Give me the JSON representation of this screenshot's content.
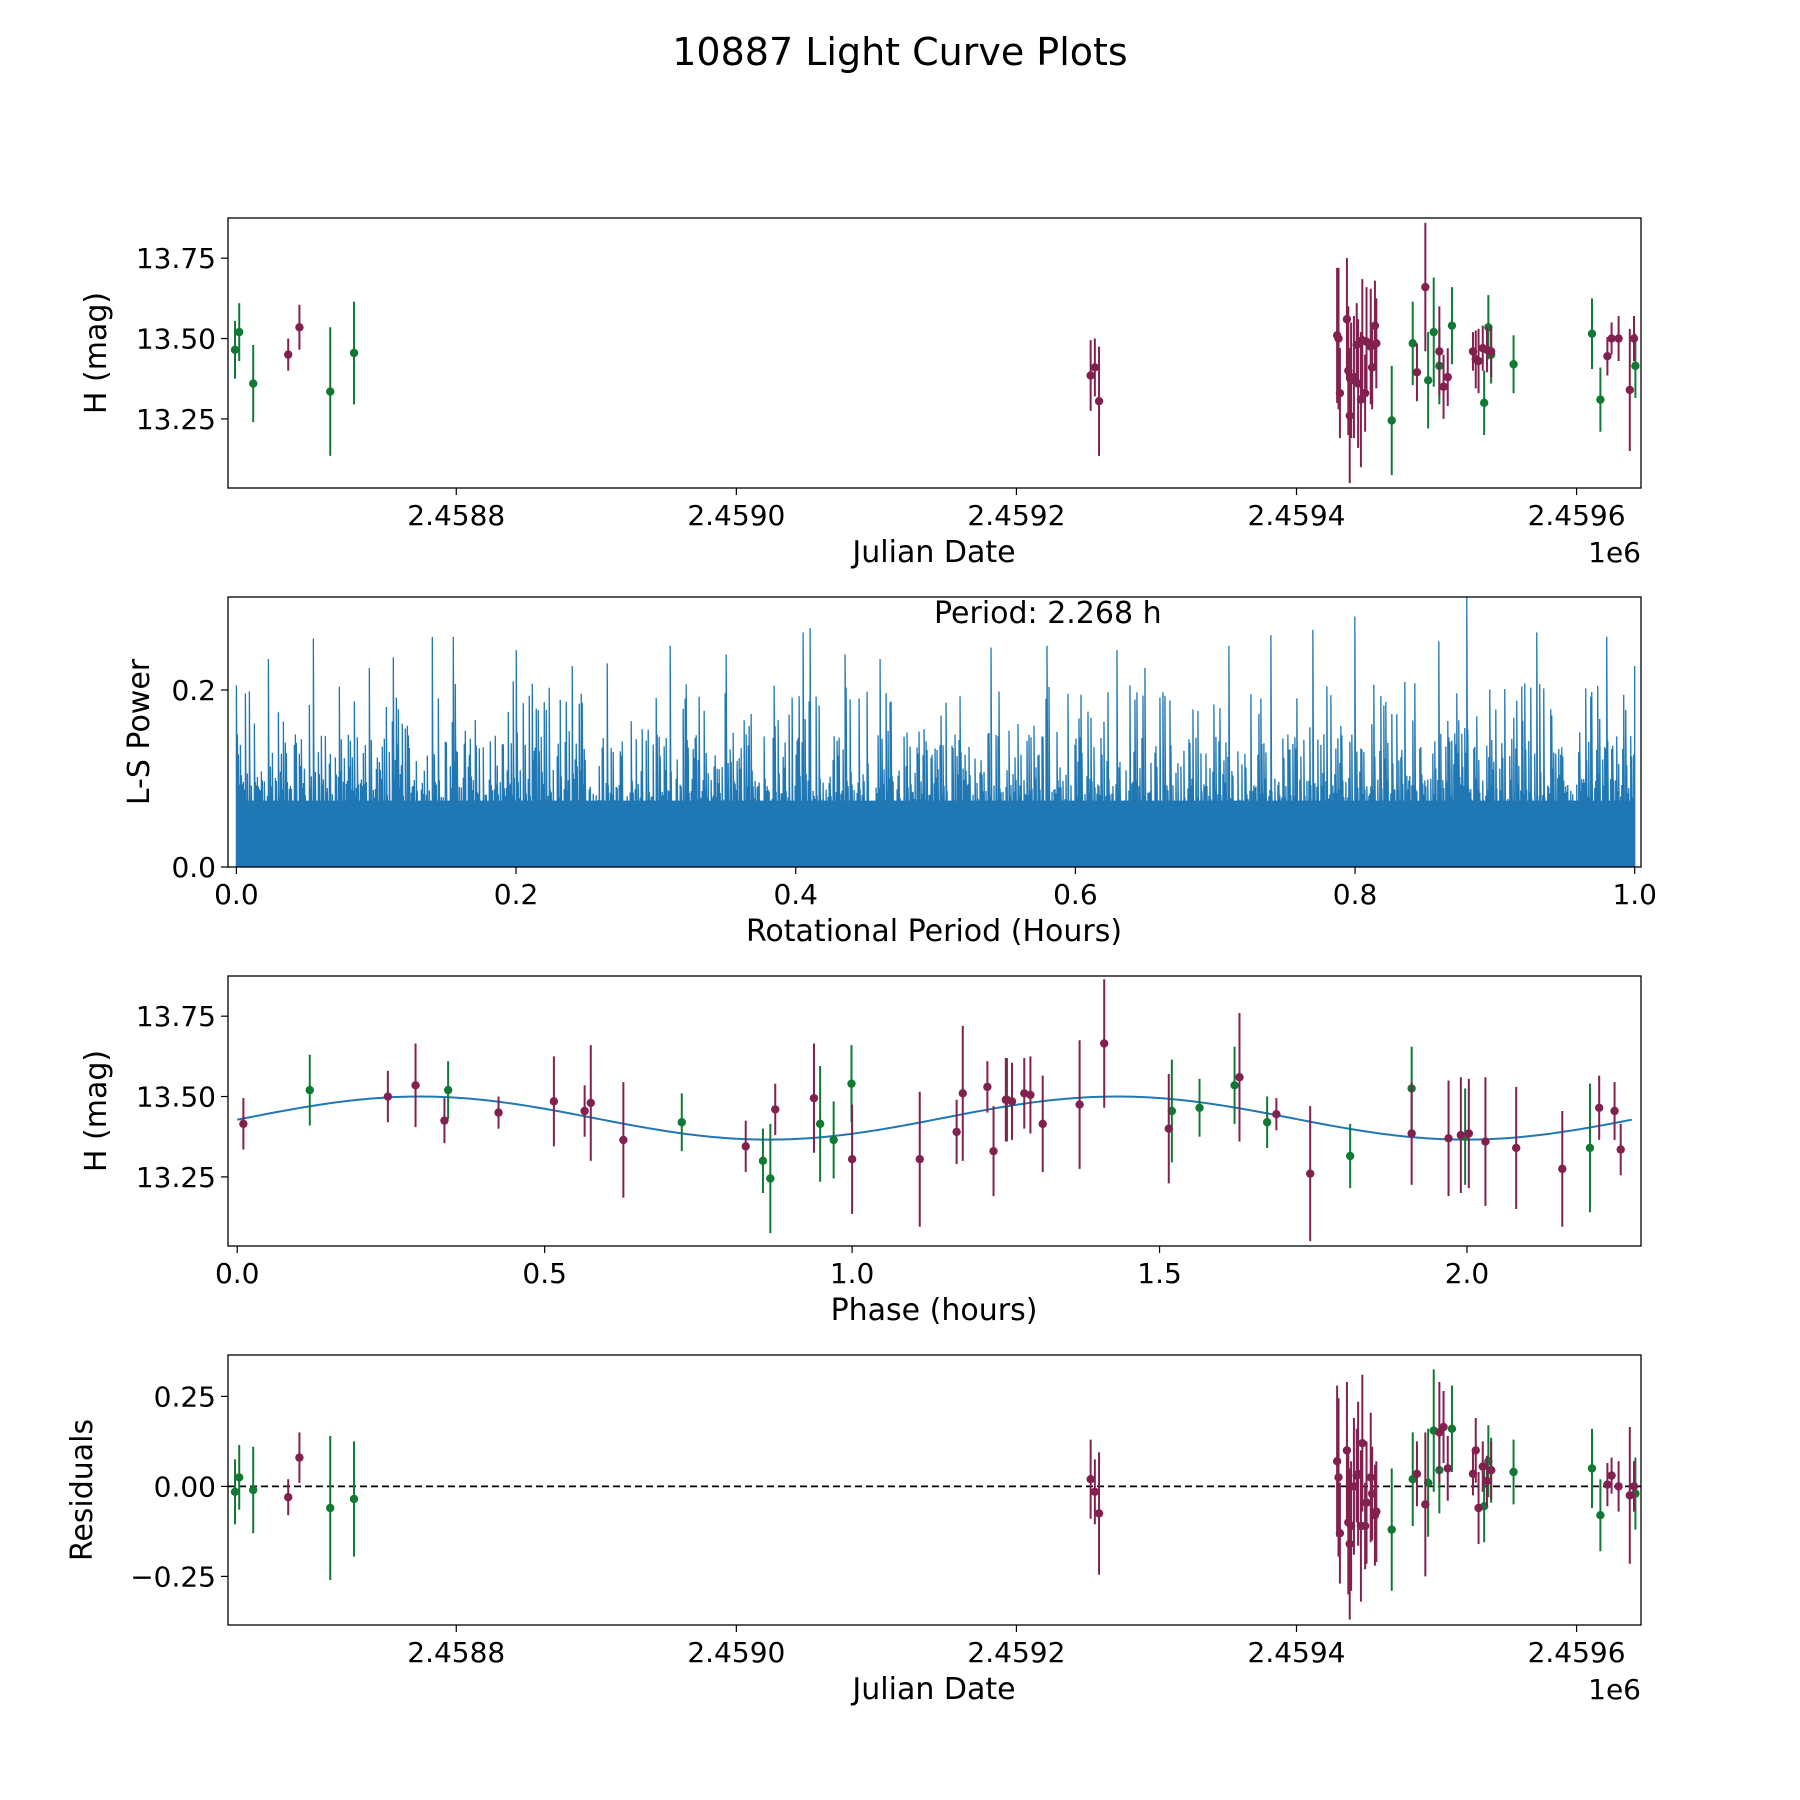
{
  "title": "10887 Light Curve Plots",
  "colors": {
    "green": "#107a35",
    "maroon": "#82204f",
    "blue": "#1f77b4"
  },
  "chart_data": [
    {
      "type": "scatter",
      "name": "light-curve",
      "xlabel": "Julian Date",
      "ylabel": "H (mag)",
      "xlim": [
        2458637,
        2459646
      ],
      "ylim": [
        13.035,
        13.875
      ],
      "x_offset_label": "1e6",
      "x_ticks": [
        2458800,
        2459000,
        2459200,
        2459400,
        2459600
      ],
      "x_tick_labels": [
        "2.4588",
        "2.4590",
        "2.4592",
        "2.4594",
        "2.4596"
      ],
      "y_ticks": [
        13.25,
        13.5,
        13.75
      ],
      "y_tick_labels": [
        "13.25",
        "13.50",
        "13.75"
      ],
      "series": [
        {
          "name": "green",
          "color": "#107a35",
          "x": [
            2458642,
            2458645,
            2458655,
            2458710,
            2458727,
            2459468,
            2459483,
            2459494,
            2459498,
            2459502,
            2459511,
            2459534,
            2459537,
            2459539,
            2459555,
            2459611,
            2459617,
            2459642
          ],
          "y": [
            13.465,
            13.52,
            13.36,
            13.335,
            13.455,
            13.245,
            13.485,
            13.37,
            13.52,
            13.415,
            13.54,
            13.3,
            13.535,
            13.45,
            13.42,
            13.515,
            13.31,
            13.415
          ],
          "err": [
            0.09,
            0.09,
            0.12,
            0.2,
            0.16,
            0.17,
            0.13,
            0.15,
            0.17,
            0.12,
            0.12,
            0.1,
            0.1,
            0.09,
            0.09,
            0.11,
            0.1,
            0.1
          ]
        },
        {
          "name": "maroon",
          "color": "#82204f",
          "x": [
            2458680,
            2458688,
            2459253,
            2459256,
            2459259,
            2459429,
            2459430,
            2459431,
            2459436,
            2459437,
            2459438,
            2459439,
            2459441,
            2459443,
            2459444,
            2459446,
            2459447,
            2459449,
            2459450,
            2459453,
            2459454,
            2459456,
            2459457,
            2459486,
            2459492,
            2459502,
            2459505,
            2459508,
            2459526,
            2459528,
            2459530,
            2459533,
            2459536,
            2459539,
            2459622,
            2459625,
            2459630,
            2459638,
            2459641
          ],
          "y": [
            13.45,
            13.535,
            13.385,
            13.41,
            13.305,
            13.51,
            13.5,
            13.33,
            13.56,
            13.4,
            13.26,
            13.37,
            13.38,
            13.48,
            13.36,
            13.31,
            13.495,
            13.33,
            13.49,
            13.475,
            13.41,
            13.54,
            13.485,
            13.395,
            13.66,
            13.46,
            13.35,
            13.38,
            13.46,
            13.435,
            13.43,
            13.47,
            13.465,
            13.46,
            13.445,
            13.5,
            13.5,
            13.34,
            13.5
          ],
          "err": [
            0.05,
            0.07,
            0.11,
            0.09,
            0.17,
            0.21,
            0.22,
            0.14,
            0.19,
            0.2,
            0.21,
            0.18,
            0.19,
            0.13,
            0.2,
            0.21,
            0.19,
            0.12,
            0.17,
            0.18,
            0.13,
            0.14,
            0.14,
            0.09,
            0.2,
            0.14,
            0.1,
            0.09,
            0.06,
            0.09,
            0.1,
            0.07,
            0.07,
            0.08,
            0.06,
            0.05,
            0.07,
            0.19,
            0.07
          ]
        }
      ]
    },
    {
      "type": "line",
      "name": "periodogram",
      "xlabel": "Rotational Period (Hours)",
      "ylabel": "L-S Power",
      "xlim": [
        -0.006,
        1.0045
      ],
      "ylim": [
        0.0,
        0.305
      ],
      "x_ticks": [
        0.0,
        0.2,
        0.4,
        0.6,
        0.8,
        1.0
      ],
      "x_tick_labels": [
        "0.0",
        "0.2",
        "0.4",
        "0.6",
        "0.8",
        "1.0"
      ],
      "y_ticks": [
        0.0,
        0.2
      ],
      "y_tick_labels": [
        "0.0",
        "0.2"
      ],
      "annotation": "Period: 2.268 h",
      "x_range": [
        0.0,
        1.0
      ],
      "n_points": 1400,
      "color": "#1f77b4",
      "peaks": {
        "x": [
          0.0,
          0.023,
          0.055,
          0.095,
          0.112,
          0.14,
          0.155,
          0.2,
          0.24,
          0.265,
          0.31,
          0.35,
          0.405,
          0.41,
          0.435,
          0.46,
          0.54,
          0.58,
          0.63,
          0.65,
          0.71,
          0.74,
          0.77,
          0.8,
          0.86,
          0.88,
          0.93,
          0.98,
          1.0
        ],
        "y": [
          0.205,
          0.235,
          0.258,
          0.225,
          0.237,
          0.26,
          0.26,
          0.245,
          0.227,
          0.23,
          0.25,
          0.24,
          0.265,
          0.27,
          0.24,
          0.235,
          0.248,
          0.25,
          0.245,
          0.225,
          0.25,
          0.262,
          0.268,
          0.283,
          0.255,
          0.308,
          0.265,
          0.26,
          0.227
        ]
      }
    },
    {
      "type": "scatter",
      "name": "phased-light-curve",
      "xlabel": "Phase (hours)",
      "ylabel": "H (mag)",
      "xlim": [
        -0.015,
        2.283
      ],
      "ylim": [
        13.035,
        13.875
      ],
      "x_ticks": [
        0.0,
        0.5,
        1.0,
        1.5,
        2.0
      ],
      "x_tick_labels": [
        "0.0",
        "0.5",
        "1.0",
        "1.5",
        "2.0"
      ],
      "y_ticks": [
        13.25,
        13.5,
        13.75
      ],
      "y_tick_labels": [
        "13.25",
        "13.50",
        "13.75"
      ],
      "model": {
        "period": 2.268,
        "mean": 13.433,
        "amplitude": 0.067,
        "phase_of_max": 0.297,
        "color": "#1f77b4"
      },
      "series": [
        {
          "name": "green",
          "color": "#107a35",
          "x": [
            0.118,
            0.343,
            0.723,
            0.855,
            0.867,
            0.948,
            0.97,
            0.999,
            1.252,
            1.52,
            1.565,
            1.622,
            1.675,
            1.81,
            1.91,
            1.997,
            2.2
          ],
          "y": [
            13.52,
            13.52,
            13.42,
            13.3,
            13.245,
            13.415,
            13.365,
            13.54,
            13.49,
            13.455,
            13.465,
            13.535,
            13.42,
            13.315,
            13.525,
            13.375,
            13.34
          ],
          "err": [
            0.11,
            0.09,
            0.09,
            0.1,
            0.17,
            0.18,
            0.12,
            0.12,
            0.13,
            0.16,
            0.09,
            0.12,
            0.08,
            0.1,
            0.13,
            0.15,
            0.2
          ]
        },
        {
          "name": "maroon",
          "color": "#82204f",
          "x": [
            0.01,
            0.245,
            0.29,
            0.337,
            0.425,
            0.515,
            0.565,
            0.575,
            0.628,
            0.827,
            0.875,
            0.938,
            1.0,
            1.11,
            1.17,
            1.18,
            1.22,
            1.23,
            1.25,
            1.26,
            1.28,
            1.29,
            1.31,
            1.37,
            1.41,
            1.515,
            1.63,
            1.69,
            1.745,
            1.91,
            1.97,
            1.99,
            2.003,
            2.03,
            2.08,
            2.155,
            2.215,
            2.24,
            2.25
          ],
          "y": [
            13.415,
            13.5,
            13.535,
            13.425,
            13.45,
            13.485,
            13.455,
            13.48,
            13.365,
            13.345,
            13.46,
            13.495,
            13.305,
            13.305,
            13.39,
            13.51,
            13.53,
            13.33,
            13.49,
            13.485,
            13.51,
            13.505,
            13.415,
            13.475,
            13.665,
            13.4,
            13.56,
            13.445,
            13.26,
            13.385,
            13.37,
            13.38,
            13.385,
            13.36,
            13.34,
            13.275,
            13.465,
            13.455,
            13.335
          ],
          "err": [
            0.08,
            0.08,
            0.13,
            0.07,
            0.05,
            0.14,
            0.08,
            0.18,
            0.18,
            0.08,
            0.08,
            0.17,
            0.17,
            0.21,
            0.1,
            0.21,
            0.08,
            0.14,
            0.13,
            0.12,
            0.11,
            0.12,
            0.15,
            0.2,
            0.2,
            0.17,
            0.2,
            0.05,
            0.21,
            0.16,
            0.18,
            0.18,
            0.17,
            0.2,
            0.19,
            0.18,
            0.1,
            0.09,
            0.08
          ]
        }
      ]
    },
    {
      "type": "scatter",
      "name": "residuals",
      "xlabel": "Julian Date",
      "ylabel": "Residuals",
      "xlim": [
        2458637,
        2459646
      ],
      "ylim": [
        -0.385,
        0.365
      ],
      "x_offset_label": "1e6",
      "x_ticks": [
        2458800,
        2459000,
        2459200,
        2459400,
        2459600
      ],
      "x_tick_labels": [
        "2.4588",
        "2.4590",
        "2.4592",
        "2.4594",
        "2.4596"
      ],
      "y_ticks": [
        -0.25,
        0.0,
        0.25
      ],
      "y_tick_labels": [
        "−0.25",
        "0.00",
        "0.25"
      ],
      "zero_line": 0.0,
      "series": [
        {
          "name": "green",
          "color": "#107a35",
          "x": [
            2458642,
            2458645,
            2458655,
            2458710,
            2458727,
            2459468,
            2459483,
            2459494,
            2459498,
            2459502,
            2459511,
            2459534,
            2459537,
            2459539,
            2459555,
            2459611,
            2459617,
            2459642
          ],
          "y": [
            -0.015,
            0.025,
            -0.01,
            -0.06,
            -0.035,
            -0.12,
            0.02,
            0.01,
            0.155,
            0.045,
            0.16,
            -0.055,
            0.07,
            0.045,
            0.04,
            0.05,
            -0.08,
            -0.02
          ],
          "err": [
            0.09,
            0.09,
            0.12,
            0.2,
            0.16,
            0.17,
            0.13,
            0.15,
            0.17,
            0.12,
            0.12,
            0.1,
            0.1,
            0.09,
            0.09,
            0.11,
            0.1,
            0.1
          ]
        },
        {
          "name": "maroon",
          "color": "#82204f",
          "x": [
            2458680,
            2458688,
            2459253,
            2459256,
            2459259,
            2459429,
            2459430,
            2459431,
            2459436,
            2459437,
            2459438,
            2459439,
            2459441,
            2459443,
            2459444,
            2459446,
            2459447,
            2459449,
            2459450,
            2459453,
            2459454,
            2459456,
            2459457,
            2459486,
            2459492,
            2459502,
            2459505,
            2459508,
            2459526,
            2459528,
            2459530,
            2459533,
            2459536,
            2459539,
            2459622,
            2459625,
            2459630,
            2459638,
            2459641
          ],
          "y": [
            -0.03,
            0.08,
            0.02,
            -0.015,
            -0.075,
            0.07,
            0.025,
            -0.13,
            0.1,
            -0.1,
            -0.16,
            -0.11,
            0.0,
            0.03,
            0.035,
            -0.11,
            0.12,
            -0.11,
            -0.045,
            0.025,
            -0.02,
            -0.08,
            -0.07,
            0.035,
            -0.05,
            0.15,
            0.165,
            0.05,
            0.035,
            0.1,
            -0.06,
            0.055,
            0.015,
            0.045,
            0.005,
            0.03,
            0.0,
            -0.025,
            0.0
          ],
          "err": [
            0.05,
            0.07,
            0.11,
            0.09,
            0.17,
            0.21,
            0.22,
            0.14,
            0.19,
            0.2,
            0.21,
            0.18,
            0.19,
            0.13,
            0.2,
            0.21,
            0.19,
            0.12,
            0.17,
            0.18,
            0.13,
            0.14,
            0.14,
            0.09,
            0.2,
            0.14,
            0.1,
            0.09,
            0.06,
            0.09,
            0.1,
            0.07,
            0.07,
            0.08,
            0.06,
            0.05,
            0.07,
            0.19,
            0.07
          ]
        }
      ]
    }
  ]
}
